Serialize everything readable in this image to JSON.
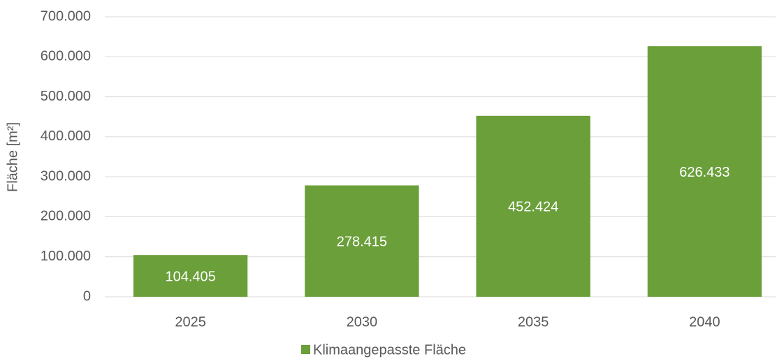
{
  "chart_data": {
    "type": "bar",
    "categories": [
      "2025",
      "2030",
      "2035",
      "2040"
    ],
    "series": [
      {
        "name": "Klimaangepasste Fläche",
        "color": "#6a9f3a",
        "values": [
          104405,
          278415,
          452424,
          626433
        ],
        "value_labels": [
          "104.405",
          "278.415",
          "452.424",
          "626.433"
        ]
      }
    ],
    "ylabel": "Fläche [m²]",
    "ylim": [
      0,
      700000
    ],
    "yticks": [
      0,
      {
        "value": 100000,
        "label": "100.000"
      },
      {
        "value": 200000,
        "label": "200.000"
      },
      {
        "value": 300000,
        "label": "300.000"
      },
      {
        "value": 400000,
        "label": "400.000"
      },
      {
        "value": 500000,
        "label": "500.000"
      },
      {
        "value": 600000,
        "label": "600.000"
      },
      {
        "value": 700000,
        "label": "700.000"
      }
    ],
    "grid": true,
    "legend": "bottom"
  }
}
